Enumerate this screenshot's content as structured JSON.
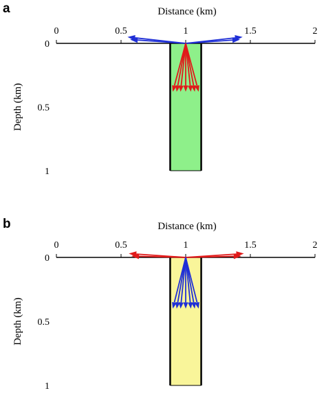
{
  "panels": [
    {
      "label": "a",
      "x_title": "Distance (km)",
      "y_title": "Depth (km)",
      "x_ticks": [
        {
          "value": 0,
          "label": "0"
        },
        {
          "value": 0.5,
          "label": "0.5"
        },
        {
          "value": 1,
          "label": "1"
        },
        {
          "value": 1.5,
          "label": "1.5"
        },
        {
          "value": 2,
          "label": "2"
        }
      ],
      "y_ticks": [
        {
          "value": 0,
          "label": "0"
        },
        {
          "value": 0.5,
          "label": "0.5"
        },
        {
          "value": 1,
          "label": "1"
        }
      ],
      "x_range": [
        0,
        2
      ],
      "y_range": [
        0,
        1
      ],
      "column": {
        "x_min": 0.88,
        "x_max": 1.12,
        "depth": 1,
        "fill": "#8ef08a"
      },
      "surface_arrows": {
        "color": "#1f2fd6",
        "origin": [
          1.0,
          0.0
        ],
        "tips": [
          [
            0.55,
            -0.05
          ],
          [
            0.57,
            -0.03
          ],
          [
            1.44,
            -0.05
          ],
          [
            1.42,
            -0.03
          ]
        ]
      },
      "column_arrows": {
        "color": "#e01a1a",
        "origin": [
          1.0,
          0.0
        ],
        "tips": [
          [
            0.9,
            0.38
          ],
          [
            0.93,
            0.38
          ],
          [
            0.96,
            0.38
          ],
          [
            1.0,
            0.38
          ],
          [
            1.04,
            0.38
          ],
          [
            1.07,
            0.38
          ],
          [
            1.1,
            0.38
          ]
        ]
      }
    },
    {
      "label": "b",
      "x_title": "Distance (km)",
      "y_title": "Depth (km)",
      "x_ticks": [
        {
          "value": 0,
          "label": "0"
        },
        {
          "value": 0.5,
          "label": "0.5"
        },
        {
          "value": 1,
          "label": "1"
        },
        {
          "value": 1.5,
          "label": "1.5"
        },
        {
          "value": 2,
          "label": "2"
        }
      ],
      "y_ticks": [
        {
          "value": 0,
          "label": "0"
        },
        {
          "value": 0.5,
          "label": "0.5"
        },
        {
          "value": 1,
          "label": "1"
        }
      ],
      "x_range": [
        0,
        2
      ],
      "y_range": [
        0,
        1
      ],
      "column": {
        "x_min": 0.88,
        "x_max": 1.12,
        "depth": 1,
        "fill": "#f9f59a"
      },
      "surface_arrows": {
        "color": "#e01a1a",
        "origin": [
          1.0,
          0.0
        ],
        "tips": [
          [
            0.56,
            -0.03
          ],
          [
            0.58,
            -0.01
          ],
          [
            1.45,
            -0.03
          ],
          [
            1.43,
            -0.01
          ]
        ]
      },
      "column_arrows": {
        "color": "#1f2fd6",
        "origin": [
          1.0,
          0.0
        ],
        "tips": [
          [
            0.9,
            0.4
          ],
          [
            0.93,
            0.4
          ],
          [
            0.96,
            0.4
          ],
          [
            1.0,
            0.4
          ],
          [
            1.04,
            0.4
          ],
          [
            1.07,
            0.4
          ],
          [
            1.1,
            0.4
          ]
        ]
      }
    }
  ]
}
